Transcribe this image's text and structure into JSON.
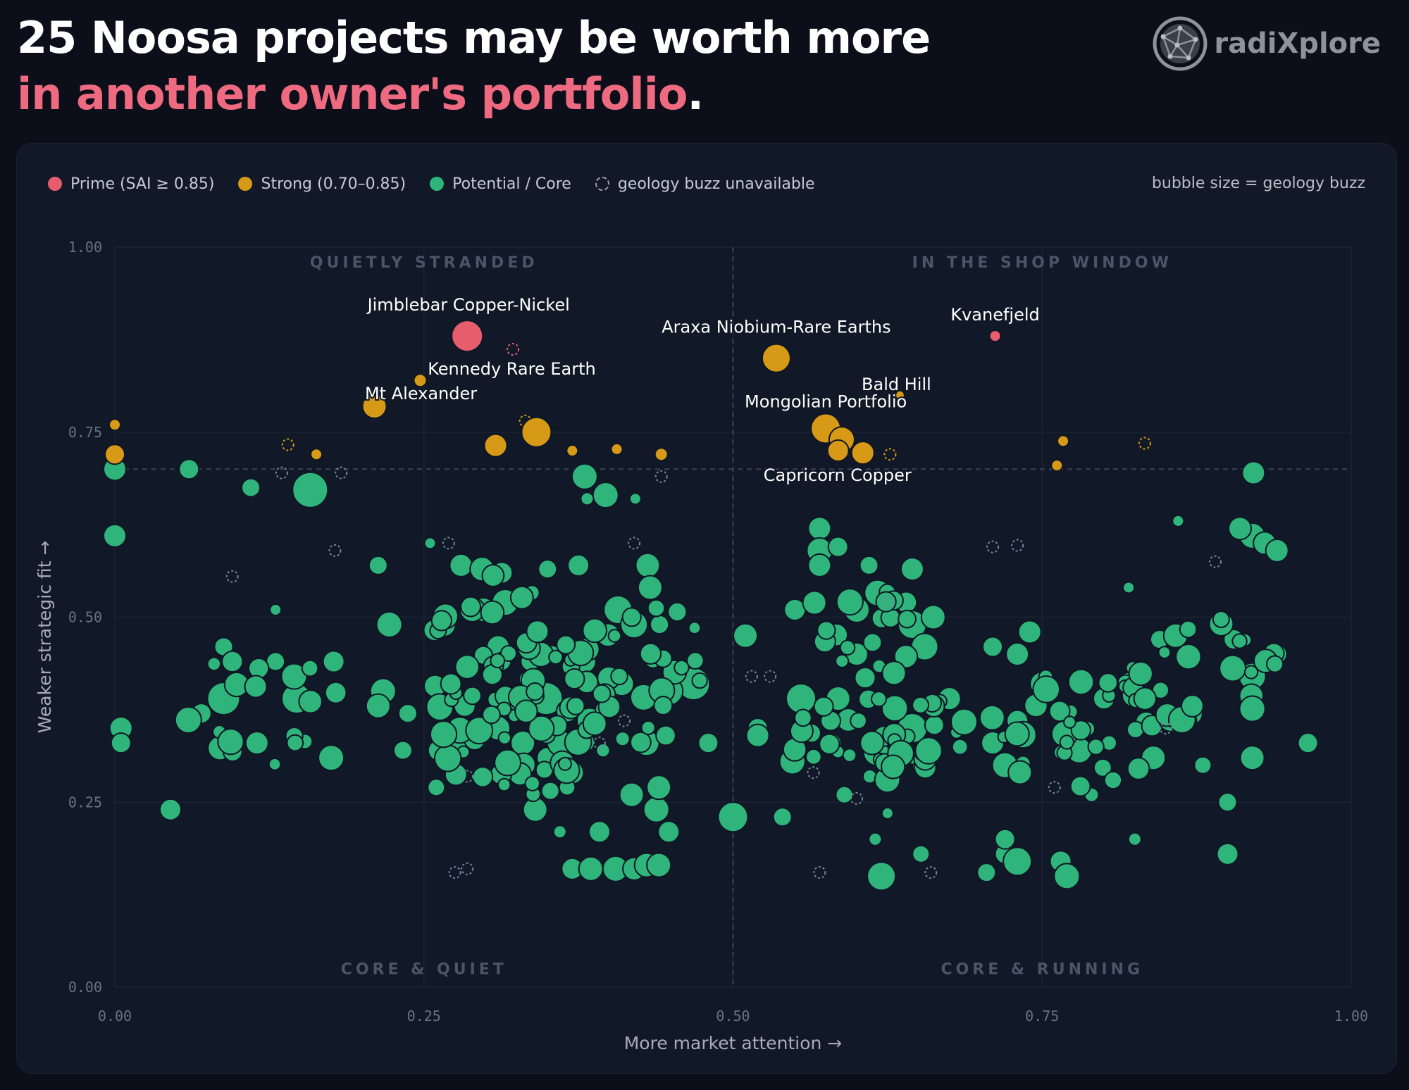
{
  "title": {
    "line1": "25 Noosa projects may be worth more",
    "line2": "in another owner's portfolio",
    "line2_suffix": "."
  },
  "logo": {
    "text": "radiXplore",
    "icon": "globe-network-icon"
  },
  "colors": {
    "background": "#0c0f19",
    "panel": "#111827",
    "prime": "#e85d6e",
    "strong": "#d69a16",
    "core": "#2fb57b",
    "core_stroke": "#0f1624",
    "unavailable": "#6f8a9a",
    "grid": "#1c2433",
    "divider": "#3b4454",
    "text": "#ffffff",
    "tick": "#6b7280",
    "quadrant_label": "#4a5566",
    "axis_label": "#a7adb8"
  },
  "legend": {
    "items": [
      {
        "label": "Prime (SAI ≥ 0.85)",
        "color": "#e85d6e"
      },
      {
        "label": "Strong (0.70–0.85)",
        "color": "#d69a16"
      },
      {
        "label": "Potential / Core",
        "color": "#2fb57b"
      },
      {
        "label": "geology buzz unavailable",
        "dashed": true
      }
    ],
    "size_note": "bubble size = geology buzz"
  },
  "chart_data": {
    "type": "scatter",
    "xlabel": "More market attention →",
    "ylabel": "Weaker strategic fit →",
    "xlim": [
      0,
      1
    ],
    "ylim": [
      0,
      1
    ],
    "xticks": [
      "0.00",
      "0.25",
      "0.50",
      "0.75",
      "1.00"
    ],
    "yticks": [
      "0.00",
      "0.25",
      "0.50",
      "0.75",
      "1.00"
    ],
    "grid": true,
    "legend_position": "top-left",
    "dividers": {
      "x": 0.5,
      "y": 0.7
    },
    "quadrants": [
      {
        "label": "QUIETLY STRANDED",
        "x": 0.25,
        "y": 0.98
      },
      {
        "label": "IN THE SHOP WINDOW",
        "x": 0.75,
        "y": 0.98
      },
      {
        "label": "CORE & QUIET",
        "x": 0.25,
        "y": 0.025
      },
      {
        "label": "CORE & RUNNING",
        "x": 0.75,
        "y": 0.025
      }
    ],
    "prime": [
      {
        "label": "Jimblebar Copper-Nickel",
        "x": 0.285,
        "y": 0.88,
        "buzz": 0.8
      },
      {
        "label": "Kvanefjeld",
        "x": 0.712,
        "y": 0.88,
        "buzz": 0.1
      },
      {
        "x": 0.322,
        "y": 0.862,
        "buzz": null
      }
    ],
    "strong": [
      {
        "label": "Kennedy Rare Earth",
        "x": 0.247,
        "y": 0.82,
        "buzz": 0.15
      },
      {
        "label": "Mt Alexander",
        "x": 0.21,
        "y": 0.785,
        "buzz": 0.55
      },
      {
        "label": "Araxa Niobium-Rare Earths",
        "x": 0.535,
        "y": 0.85,
        "buzz": 0.7
      },
      {
        "label": "Mongolian Portfolio",
        "x": 0.575,
        "y": 0.755,
        "buzz": 0.75
      },
      {
        "x": 0.588,
        "y": 0.74,
        "buzz": 0.6
      },
      {
        "x": 0.585,
        "y": 0.725,
        "buzz": 0.45
      },
      {
        "label": "Capricorn Copper",
        "x": 0.605,
        "y": 0.722,
        "buzz": 0.5
      },
      {
        "label": "Bald Hill",
        "x": 0.635,
        "y": 0.8,
        "buzz": 0.02
      },
      {
        "x": 0.0,
        "y": 0.76,
        "buzz": 0.1
      },
      {
        "x": 0.0,
        "y": 0.72,
        "buzz": 0.4
      },
      {
        "x": 0.163,
        "y": 0.72,
        "buzz": 0.1
      },
      {
        "x": 0.308,
        "y": 0.732,
        "buzz": 0.5
      },
      {
        "x": 0.341,
        "y": 0.75,
        "buzz": 0.75
      },
      {
        "x": 0.37,
        "y": 0.725,
        "buzz": 0.1
      },
      {
        "x": 0.406,
        "y": 0.727,
        "buzz": 0.1
      },
      {
        "x": 0.442,
        "y": 0.72,
        "buzz": 0.15
      },
      {
        "x": 0.767,
        "y": 0.738,
        "buzz": 0.1
      },
      {
        "x": 0.762,
        "y": 0.705,
        "buzz": 0.1
      },
      {
        "x": 0.14,
        "y": 0.733,
        "buzz": null
      },
      {
        "x": 0.332,
        "y": 0.765,
        "buzz": null
      },
      {
        "x": 0.627,
        "y": 0.72,
        "buzz": null
      },
      {
        "x": 0.833,
        "y": 0.735,
        "buzz": null
      }
    ],
    "core_seed": 20240917,
    "core": [
      {
        "x": 0.0,
        "y": 0.7,
        "buzz": 0.5
      },
      {
        "x": 0.0,
        "y": 0.61,
        "buzz": 0.5
      },
      {
        "x": 0.06,
        "y": 0.7,
        "buzz": 0.4
      },
      {
        "x": 0.11,
        "y": 0.675,
        "buzz": 0.35
      },
      {
        "x": 0.158,
        "y": 0.672,
        "buzz": 0.95
      },
      {
        "x": 0.38,
        "y": 0.69,
        "buzz": 0.6
      },
      {
        "x": 0.397,
        "y": 0.665,
        "buzz": 0.6
      },
      {
        "x": 0.382,
        "y": 0.66,
        "buzz": 0.15
      },
      {
        "x": 0.421,
        "y": 0.66,
        "buzz": 0.1
      },
      {
        "x": 0.921,
        "y": 0.695,
        "buzz": 0.5
      },
      {
        "x": 0.005,
        "y": 0.35,
        "buzz": 0.5
      },
      {
        "x": 0.005,
        "y": 0.33,
        "buzz": 0.4
      },
      {
        "x": 0.045,
        "y": 0.24,
        "buzz": 0.45
      },
      {
        "x": 0.175,
        "y": 0.31,
        "buzz": 0.6
      },
      {
        "x": 0.07,
        "y": 0.37,
        "buzz": 0.4
      },
      {
        "x": 0.088,
        "y": 0.39,
        "buzz": 0.85
      },
      {
        "x": 0.115,
        "y": 0.33,
        "buzz": 0.5
      },
      {
        "x": 0.147,
        "y": 0.39,
        "buzz": 0.75
      },
      {
        "x": 0.145,
        "y": 0.42,
        "buzz": 0.6
      },
      {
        "x": 0.13,
        "y": 0.51,
        "buzz": 0.1
      },
      {
        "x": 0.088,
        "y": 0.46,
        "buzz": 0.35
      },
      {
        "x": 0.177,
        "y": 0.44,
        "buzz": 0.45
      },
      {
        "x": 0.213,
        "y": 0.57,
        "buzz": 0.35
      },
      {
        "x": 0.222,
        "y": 0.49,
        "buzz": 0.6
      },
      {
        "x": 0.217,
        "y": 0.4,
        "buzz": 0.6
      },
      {
        "x": 0.213,
        "y": 0.38,
        "buzz": 0.55
      },
      {
        "x": 0.266,
        "y": 0.49,
        "buzz": 0.55
      },
      {
        "x": 0.28,
        "y": 0.57,
        "buzz": 0.5
      },
      {
        "x": 0.297,
        "y": 0.565,
        "buzz": 0.55
      },
      {
        "x": 0.313,
        "y": 0.56,
        "buzz": 0.45
      },
      {
        "x": 0.35,
        "y": 0.565,
        "buzz": 0.35
      },
      {
        "x": 0.375,
        "y": 0.57,
        "buzz": 0.45
      },
      {
        "x": 0.431,
        "y": 0.57,
        "buzz": 0.55
      },
      {
        "x": 0.433,
        "y": 0.54,
        "buzz": 0.55
      },
      {
        "x": 0.407,
        "y": 0.51,
        "buzz": 0.7
      },
      {
        "x": 0.42,
        "y": 0.49,
        "buzz": 0.65
      },
      {
        "x": 0.298,
        "y": 0.51,
        "buzz": 0.55
      },
      {
        "x": 0.31,
        "y": 0.46,
        "buzz": 0.5
      },
      {
        "x": 0.349,
        "y": 0.39,
        "buzz": 0.85
      },
      {
        "x": 0.38,
        "y": 0.44,
        "buzz": 0.5
      },
      {
        "x": 0.41,
        "y": 0.41,
        "buzz": 0.55
      },
      {
        "x": 0.468,
        "y": 0.41,
        "buzz": 0.85
      },
      {
        "x": 0.448,
        "y": 0.4,
        "buzz": 0.7
      },
      {
        "x": 0.384,
        "y": 0.36,
        "buzz": 0.6
      },
      {
        "x": 0.31,
        "y": 0.35,
        "buzz": 0.55
      },
      {
        "x": 0.283,
        "y": 0.38,
        "buzz": 0.45
      },
      {
        "x": 0.237,
        "y": 0.37,
        "buzz": 0.35
      },
      {
        "x": 0.233,
        "y": 0.32,
        "buzz": 0.35
      },
      {
        "x": 0.262,
        "y": 0.32,
        "buzz": 0.45
      },
      {
        "x": 0.277,
        "y": 0.33,
        "buzz": 0.5
      },
      {
        "x": 0.291,
        "y": 0.335,
        "buzz": 0.45
      },
      {
        "x": 0.315,
        "y": 0.275,
        "buzz": 0.2
      },
      {
        "x": 0.26,
        "y": 0.27,
        "buzz": 0.3
      },
      {
        "x": 0.33,
        "y": 0.33,
        "buzz": 0.55
      },
      {
        "x": 0.35,
        "y": 0.31,
        "buzz": 0.45
      },
      {
        "x": 0.36,
        "y": 0.33,
        "buzz": 0.6
      },
      {
        "x": 0.37,
        "y": 0.29,
        "buzz": 0.5
      },
      {
        "x": 0.34,
        "y": 0.24,
        "buzz": 0.55
      },
      {
        "x": 0.36,
        "y": 0.21,
        "buzz": 0.15
      },
      {
        "x": 0.392,
        "y": 0.21,
        "buzz": 0.45
      },
      {
        "x": 0.37,
        "y": 0.16,
        "buzz": 0.45
      },
      {
        "x": 0.385,
        "y": 0.16,
        "buzz": 0.55
      },
      {
        "x": 0.405,
        "y": 0.16,
        "buzz": 0.6
      },
      {
        "x": 0.42,
        "y": 0.16,
        "buzz": 0.5
      },
      {
        "x": 0.43,
        "y": 0.165,
        "buzz": 0.55
      },
      {
        "x": 0.44,
        "y": 0.165,
        "buzz": 0.55
      },
      {
        "x": 0.448,
        "y": 0.21,
        "buzz": 0.45
      },
      {
        "x": 0.438,
        "y": 0.24,
        "buzz": 0.6
      },
      {
        "x": 0.418,
        "y": 0.26,
        "buzz": 0.55
      },
      {
        "x": 0.44,
        "y": 0.27,
        "buzz": 0.55
      },
      {
        "x": 0.43,
        "y": 0.33,
        "buzz": 0.6
      },
      {
        "x": 0.48,
        "y": 0.33,
        "buzz": 0.4
      },
      {
        "x": 0.5,
        "y": 0.23,
        "buzz": 0.75
      },
      {
        "x": 0.54,
        "y": 0.23,
        "buzz": 0.35
      },
      {
        "x": 0.52,
        "y": 0.35,
        "buzz": 0.4
      },
      {
        "x": 0.52,
        "y": 0.34,
        "buzz": 0.5
      },
      {
        "x": 0.548,
        "y": 0.305,
        "buzz": 0.6
      },
      {
        "x": 0.58,
        "y": 0.33,
        "buzz": 0.35
      },
      {
        "x": 0.555,
        "y": 0.39,
        "buzz": 0.75
      },
      {
        "x": 0.585,
        "y": 0.39,
        "buzz": 0.55
      },
      {
        "x": 0.51,
        "y": 0.475,
        "buzz": 0.55
      },
      {
        "x": 0.55,
        "y": 0.51,
        "buzz": 0.45
      },
      {
        "x": 0.57,
        "y": 0.62,
        "buzz": 0.5
      },
      {
        "x": 0.57,
        "y": 0.59,
        "buzz": 0.6
      },
      {
        "x": 0.57,
        "y": 0.57,
        "buzz": 0.5
      },
      {
        "x": 0.585,
        "y": 0.595,
        "buzz": 0.4
      },
      {
        "x": 0.61,
        "y": 0.57,
        "buzz": 0.35
      },
      {
        "x": 0.6,
        "y": 0.51,
        "buzz": 0.6
      },
      {
        "x": 0.6,
        "y": 0.45,
        "buzz": 0.5
      },
      {
        "x": 0.645,
        "y": 0.565,
        "buzz": 0.5
      },
      {
        "x": 0.64,
        "y": 0.52,
        "buzz": 0.45
      },
      {
        "x": 0.645,
        "y": 0.49,
        "buzz": 0.7
      },
      {
        "x": 0.655,
        "y": 0.46,
        "buzz": 0.65
      },
      {
        "x": 0.662,
        "y": 0.5,
        "buzz": 0.55
      },
      {
        "x": 0.645,
        "y": 0.35,
        "buzz": 0.75
      },
      {
        "x": 0.63,
        "y": 0.3,
        "buzz": 0.6
      },
      {
        "x": 0.655,
        "y": 0.3,
        "buzz": 0.55
      },
      {
        "x": 0.675,
        "y": 0.39,
        "buzz": 0.5
      },
      {
        "x": 0.62,
        "y": 0.15,
        "buzz": 0.7
      },
      {
        "x": 0.72,
        "y": 0.18,
        "buzz": 0.4
      },
      {
        "x": 0.72,
        "y": 0.2,
        "buzz": 0.4
      },
      {
        "x": 0.73,
        "y": 0.17,
        "buzz": 0.7
      },
      {
        "x": 0.765,
        "y": 0.17,
        "buzz": 0.45
      },
      {
        "x": 0.77,
        "y": 0.15,
        "buzz": 0.6
      },
      {
        "x": 0.705,
        "y": 0.155,
        "buzz": 0.35
      },
      {
        "x": 0.72,
        "y": 0.3,
        "buzz": 0.6
      },
      {
        "x": 0.71,
        "y": 0.33,
        "buzz": 0.5
      },
      {
        "x": 0.73,
        "y": 0.36,
        "buzz": 0.45
      },
      {
        "x": 0.75,
        "y": 0.41,
        "buzz": 0.55
      },
      {
        "x": 0.73,
        "y": 0.45,
        "buzz": 0.5
      },
      {
        "x": 0.71,
        "y": 0.46,
        "buzz": 0.4
      },
      {
        "x": 0.74,
        "y": 0.48,
        "buzz": 0.5
      },
      {
        "x": 0.78,
        "y": 0.32,
        "buzz": 0.6
      },
      {
        "x": 0.8,
        "y": 0.39,
        "buzz": 0.45
      },
      {
        "x": 0.82,
        "y": 0.41,
        "buzz": 0.5
      },
      {
        "x": 0.825,
        "y": 0.395,
        "buzz": 0.6
      },
      {
        "x": 0.845,
        "y": 0.47,
        "buzz": 0.35
      },
      {
        "x": 0.858,
        "y": 0.475,
        "buzz": 0.55
      },
      {
        "x": 0.87,
        "y": 0.37,
        "buzz": 0.55
      },
      {
        "x": 0.84,
        "y": 0.31,
        "buzz": 0.55
      },
      {
        "x": 0.88,
        "y": 0.3,
        "buzz": 0.3
      },
      {
        "x": 0.9,
        "y": 0.25,
        "buzz": 0.35
      },
      {
        "x": 0.9,
        "y": 0.18,
        "buzz": 0.45
      },
      {
        "x": 0.92,
        "y": 0.31,
        "buzz": 0.55
      },
      {
        "x": 0.92,
        "y": 0.42,
        "buzz": 0.65
      },
      {
        "x": 0.94,
        "y": 0.45,
        "buzz": 0.4
      },
      {
        "x": 0.905,
        "y": 0.47,
        "buzz": 0.4
      },
      {
        "x": 0.965,
        "y": 0.33,
        "buzz": 0.4
      },
      {
        "x": 0.92,
        "y": 0.61,
        "buzz": 0.6
      },
      {
        "x": 0.91,
        "y": 0.62,
        "buzz": 0.5
      },
      {
        "x": 0.93,
        "y": 0.6,
        "buzz": 0.5
      },
      {
        "x": 0.94,
        "y": 0.59,
        "buzz": 0.5
      },
      {
        "x": 0.86,
        "y": 0.63,
        "buzz": 0.1
      },
      {
        "x": 0.82,
        "y": 0.54,
        "buzz": 0.1
      },
      {
        "x": 0.59,
        "y": 0.26,
        "buzz": 0.3
      },
      {
        "x": 0.625,
        "y": 0.235,
        "buzz": 0.1
      },
      {
        "x": 0.615,
        "y": 0.2,
        "buzz": 0.15
      },
      {
        "x": 0.652,
        "y": 0.18,
        "buzz": 0.3
      },
      {
        "x": 0.79,
        "y": 0.26,
        "buzz": 0.2
      },
      {
        "x": 0.825,
        "y": 0.2,
        "buzz": 0.15
      },
      {
        "x": 0.255,
        "y": 0.6,
        "buzz": 0.1
      },
      {
        "x": 0.13,
        "y": 0.44,
        "buzz": 0.35
      }
    ],
    "unavailable": [
      {
        "x": 0.095,
        "y": 0.555
      },
      {
        "x": 0.135,
        "y": 0.695
      },
      {
        "x": 0.183,
        "y": 0.695
      },
      {
        "x": 0.178,
        "y": 0.59
      },
      {
        "x": 0.27,
        "y": 0.6
      },
      {
        "x": 0.42,
        "y": 0.6
      },
      {
        "x": 0.442,
        "y": 0.69
      },
      {
        "x": 0.275,
        "y": 0.155
      },
      {
        "x": 0.285,
        "y": 0.16
      },
      {
        "x": 0.392,
        "y": 0.33
      },
      {
        "x": 0.412,
        "y": 0.36
      },
      {
        "x": 0.53,
        "y": 0.42
      },
      {
        "x": 0.515,
        "y": 0.42
      },
      {
        "x": 0.57,
        "y": 0.155
      },
      {
        "x": 0.565,
        "y": 0.29
      },
      {
        "x": 0.6,
        "y": 0.255
      },
      {
        "x": 0.66,
        "y": 0.155
      },
      {
        "x": 0.71,
        "y": 0.595
      },
      {
        "x": 0.73,
        "y": 0.597
      },
      {
        "x": 0.89,
        "y": 0.575
      },
      {
        "x": 0.76,
        "y": 0.27
      },
      {
        "x": 0.85,
        "y": 0.35
      },
      {
        "x": 0.625,
        "y": 0.52
      },
      {
        "x": 0.285,
        "y": 0.285
      }
    ]
  }
}
